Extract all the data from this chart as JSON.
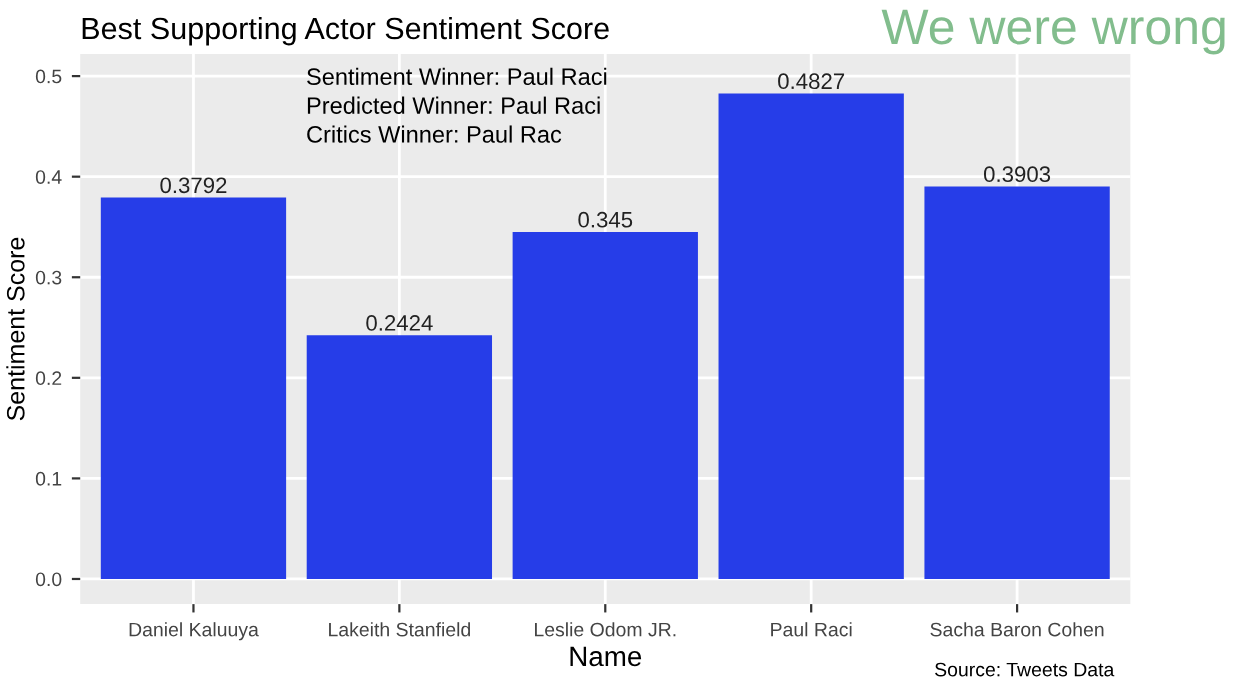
{
  "chart_data": {
    "type": "bar",
    "title": "Best Supporting Actor Sentiment Score",
    "xlabel": "Name",
    "ylabel": "Sentiment Score",
    "categories": [
      "Daniel Kaluuya",
      "Lakeith Stanfield",
      "Leslie Odom JR.",
      "Paul Raci",
      "Sacha Baron Cohen"
    ],
    "values": [
      0.3792,
      0.2424,
      0.345,
      0.4827,
      0.3903
    ],
    "color": "#263de8",
    "data_labels": true,
    "ylim": [
      -0.025,
      0.522
    ],
    "yticks": [
      {
        "value": 0,
        "label": "0.0"
      },
      0.1,
      0.2,
      0.3,
      0.4,
      0.5
    ],
    "grid": true,
    "annotations": [
      "Sentiment Winner: Paul Raci\nPredicted Winner: Paul Raci\nCritics Winner: Paul Rac",
      "We were wrong",
      "Source: Tweets Data"
    ]
  }
}
